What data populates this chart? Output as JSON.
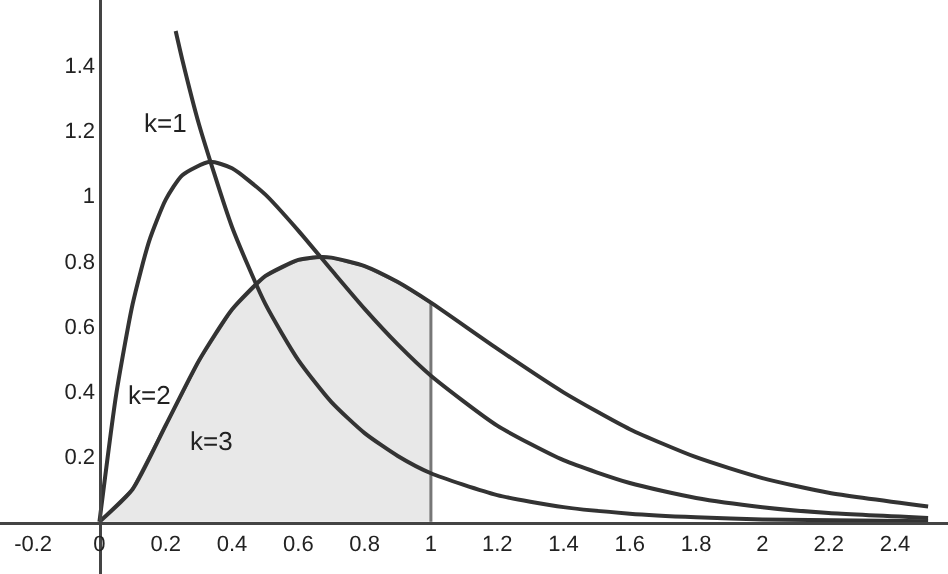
{
  "chart_data": {
    "type": "line",
    "xlim": [
      -0.3,
      2.56
    ],
    "ylim": [
      -0.16,
      1.6
    ],
    "xticks": [
      -0.2,
      0,
      0.2,
      0.4,
      0.6,
      0.8,
      1,
      1.2,
      1.4,
      1.6,
      1.8,
      2,
      2.2,
      2.4
    ],
    "yticks": [
      0.2,
      0.4,
      0.6,
      0.8,
      1,
      1.2,
      1.4
    ],
    "grid": false,
    "legend": false,
    "series": [
      {
        "type": "area",
        "color": "#e8e8e8",
        "x": [
          0,
          0.1,
          0.2,
          0.3,
          0.4,
          0.5,
          0.6,
          0.667,
          0.7,
          0.8,
          0.9,
          1.0
        ],
        "values": [
          0,
          0.1,
          0.296,
          0.494,
          0.651,
          0.753,
          0.803,
          0.812,
          0.81,
          0.784,
          0.735,
          0.672
        ]
      },
      {
        "name": "k=1",
        "color": "#333333",
        "x": [
          0.23,
          0.25,
          0.3,
          0.4,
          0.5,
          0.6,
          0.7,
          0.8,
          0.9,
          1.0,
          1.2,
          1.4,
          1.6,
          1.8,
          2.0,
          2.5
        ],
        "values": [
          1.505,
          1.417,
          1.22,
          0.904,
          0.669,
          0.496,
          0.367,
          0.272,
          0.202,
          0.149,
          0.082,
          0.045,
          0.025,
          0.014,
          0.007,
          0.002
        ]
      },
      {
        "name": "k=2",
        "color": "#333333",
        "x": [
          0,
          0.05,
          0.1,
          0.15,
          0.2,
          0.25,
          0.333,
          0.4,
          0.5,
          0.6,
          0.7,
          0.8,
          0.9,
          1.0,
          1.2,
          1.4,
          1.6,
          1.8,
          2.0,
          2.2,
          2.5
        ],
        "values": [
          0,
          0.387,
          0.667,
          0.861,
          0.988,
          1.063,
          1.104,
          1.084,
          1.004,
          0.893,
          0.772,
          0.653,
          0.544,
          0.448,
          0.295,
          0.189,
          0.119,
          0.073,
          0.045,
          0.027,
          0.012
        ]
      },
      {
        "name": "k=3",
        "color": "#333333",
        "x": [
          0,
          0.1,
          0.2,
          0.3,
          0.4,
          0.5,
          0.6,
          0.667,
          0.7,
          0.8,
          0.9,
          1.0,
          1.2,
          1.4,
          1.6,
          1.8,
          2.0,
          2.2,
          2.5
        ],
        "values": [
          0,
          0.1,
          0.296,
          0.494,
          0.651,
          0.753,
          0.803,
          0.812,
          0.81,
          0.784,
          0.735,
          0.672,
          0.531,
          0.397,
          0.284,
          0.198,
          0.134,
          0.089,
          0.047
        ]
      }
    ]
  }
}
